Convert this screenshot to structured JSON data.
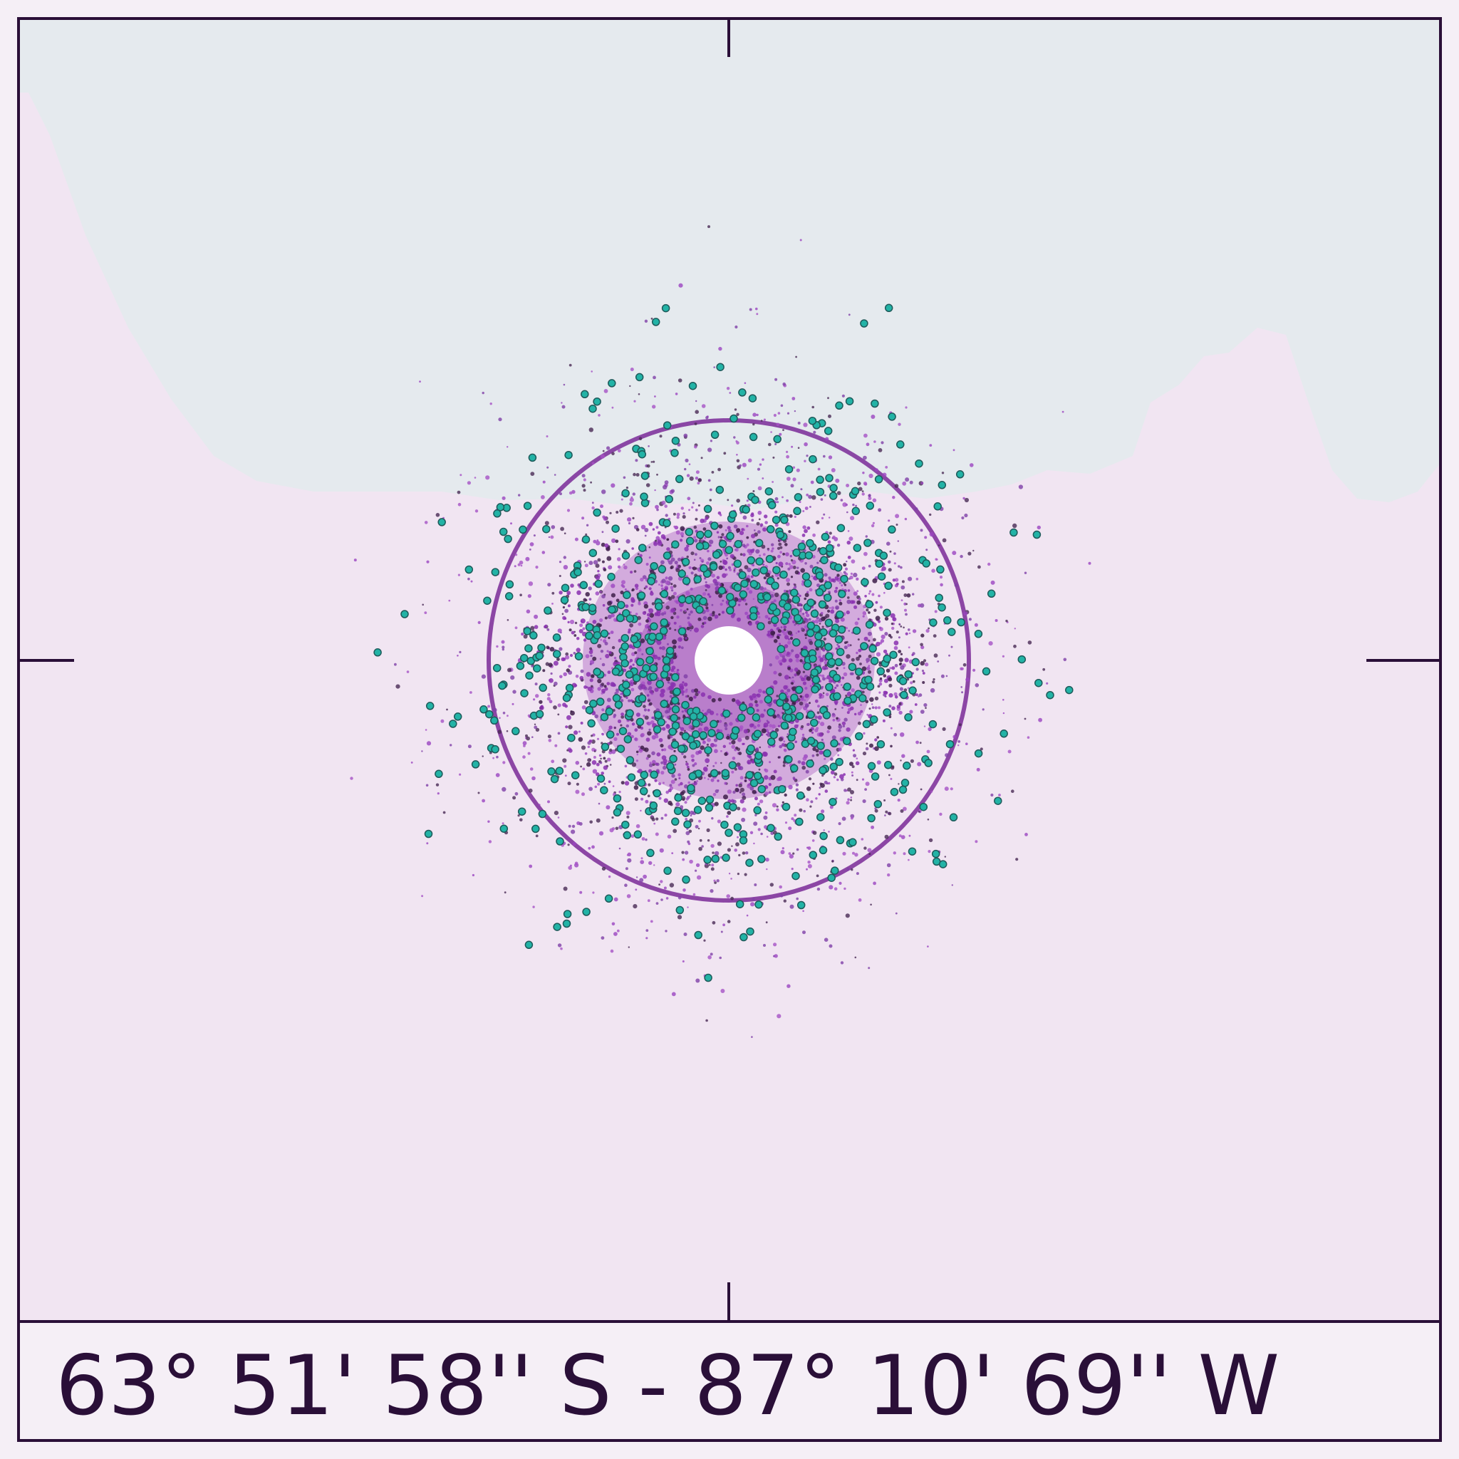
{
  "caption": {
    "coordinates": "63° 51' 58'' S - 87° 10' 69'' W"
  }
}
